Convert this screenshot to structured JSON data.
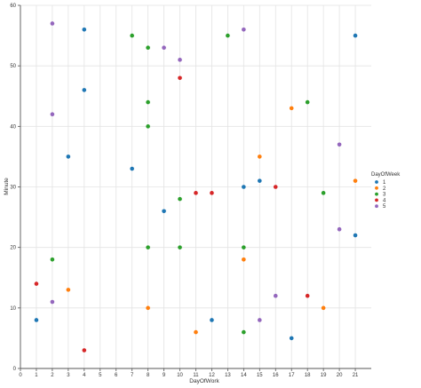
{
  "chart_data": {
    "type": "scatter",
    "xlabel": "DayOfWork",
    "ylabel": "Minute",
    "xlim": [
      0,
      22
    ],
    "ylim": [
      0,
      60
    ],
    "xticks": [
      0,
      1,
      2,
      3,
      4,
      5,
      6,
      7,
      8,
      9,
      10,
      11,
      12,
      13,
      14,
      15,
      16,
      17,
      18,
      19,
      20,
      21
    ],
    "yticks": [
      0,
      10,
      20,
      30,
      40,
      50,
      60
    ],
    "grid": true,
    "legend": {
      "title": "DayOfWeek",
      "placement": "right"
    },
    "series": [
      {
        "name": "1",
        "color": "#1f77b4",
        "points": [
          [
            1,
            8
          ],
          [
            3,
            35
          ],
          [
            4,
            56
          ],
          [
            4,
            46
          ],
          [
            7,
            33
          ],
          [
            9,
            26
          ],
          [
            12,
            8
          ],
          [
            14,
            30
          ],
          [
            15,
            31
          ],
          [
            17,
            5
          ],
          [
            21,
            55
          ],
          [
            21,
            22
          ]
        ]
      },
      {
        "name": "2",
        "color": "#ff7f0e",
        "points": [
          [
            3,
            13
          ],
          [
            8,
            10
          ],
          [
            11,
            6
          ],
          [
            14,
            18
          ],
          [
            15,
            35
          ],
          [
            17,
            43
          ],
          [
            19,
            10
          ],
          [
            21,
            31
          ]
        ]
      },
      {
        "name": "3",
        "color": "#2ca02c",
        "points": [
          [
            2,
            18
          ],
          [
            7,
            55
          ],
          [
            8,
            53
          ],
          [
            8,
            44
          ],
          [
            8,
            40
          ],
          [
            8,
            20
          ],
          [
            10,
            28
          ],
          [
            10,
            20
          ],
          [
            13,
            55
          ],
          [
            14,
            20
          ],
          [
            14,
            6
          ],
          [
            18,
            44
          ],
          [
            19,
            29
          ]
        ]
      },
      {
        "name": "4",
        "color": "#d62728",
        "points": [
          [
            1,
            14
          ],
          [
            4,
            3
          ],
          [
            10,
            48
          ],
          [
            11,
            29
          ],
          [
            12,
            29
          ],
          [
            16,
            30
          ],
          [
            18,
            12
          ]
        ]
      },
      {
        "name": "5",
        "color": "#9467bd",
        "points": [
          [
            2,
            57
          ],
          [
            2,
            42
          ],
          [
            2,
            11
          ],
          [
            9,
            53
          ],
          [
            10,
            51
          ],
          [
            14,
            56
          ],
          [
            15,
            8
          ],
          [
            16,
            12
          ],
          [
            20,
            37
          ],
          [
            20,
            23
          ]
        ]
      }
    ]
  }
}
